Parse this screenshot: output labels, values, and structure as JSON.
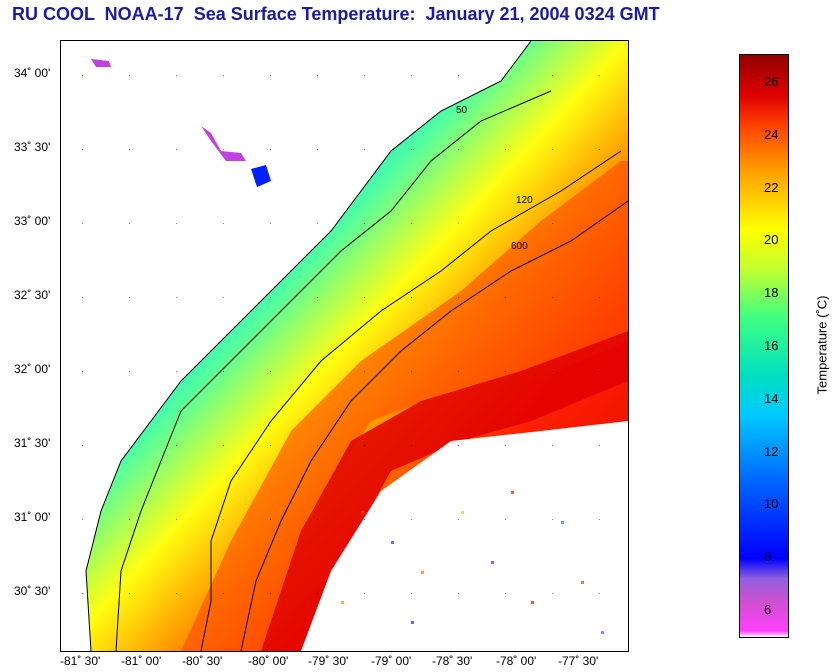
{
  "title": "RU COOL  NOAA-17  Sea Surface Temperature:  January 21, 2004 0324 GMT",
  "lat_labels": [
    "34˚ 00'",
    "33˚ 30'",
    "33˚ 00'",
    "32˚ 30'",
    "32˚ 00'",
    "31˚ 30'",
    "31˚ 00'",
    "30˚ 30'"
  ],
  "lon_labels": [
    "-81˚ 30'",
    "-81˚ 00'",
    "-80˚ 30'",
    "-80˚ 00'",
    "-79˚ 30'",
    "-79˚ 00'",
    "-78˚ 30'",
    "-78˚ 00'",
    "-77˚ 30'"
  ],
  "contour_labels": [
    "50",
    "120",
    "600"
  ],
  "colorbar": {
    "label": "Temperature (˚C)",
    "ticks": [
      "26",
      "24",
      "22",
      "20",
      "18",
      "16",
      "14",
      "12",
      "10",
      "8",
      "6"
    ],
    "range": [
      5,
      27
    ]
  },
  "colors": {
    "title": "#1a1aa6",
    "land": "#ffffff",
    "contour": "#000000"
  }
}
